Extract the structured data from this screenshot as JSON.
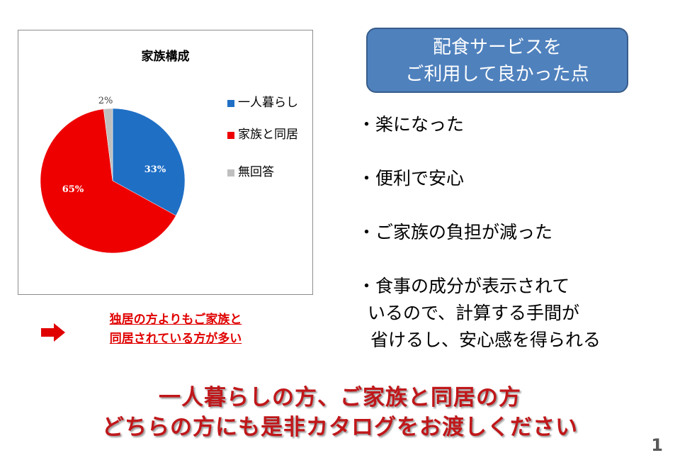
{
  "chart_data": {
    "type": "pie",
    "title": "家族構成",
    "labels": [
      "一人暮らし",
      "家族と同居",
      "無回答"
    ],
    "values": [
      33,
      65,
      2
    ],
    "data_labels": [
      "33%",
      "65%",
      "2%"
    ],
    "colors": [
      "#1f6fc5",
      "#ee0000",
      "#bfbfbf"
    ],
    "legend_position": "right"
  },
  "callout": {
    "line1": "独居の方よりもご家族と",
    "line2": "同居されている方が多い",
    "arrow_icon": "right-arrow-icon",
    "color": "#e00000"
  },
  "service_box": {
    "line1": "配食サービスを",
    "line2": "ご利用して良かった点",
    "color": "#4f81bd"
  },
  "benefits": [
    {
      "line1": "・楽になった"
    },
    {
      "line1": "・便利で安心"
    },
    {
      "line1": "・ご家族の負担が減った"
    },
    {
      "line1": "・食事の成分が表示されて",
      "line2": "いるので、計算する手間が",
      "line3": "省けるし、安心感を得られる"
    }
  ],
  "footer": {
    "line1": "一人暮らしの方、ご家族と同居の方",
    "line2": "どちらの方にも是非カタログをお渡しください",
    "color": "#c0171a"
  },
  "page_number": "1"
}
